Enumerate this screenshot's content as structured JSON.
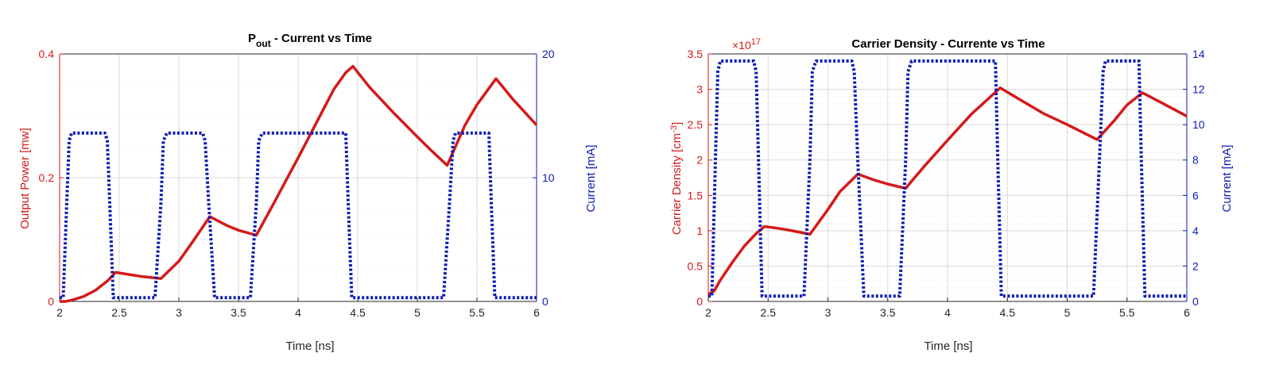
{
  "colors": {
    "power": "#d41a1a",
    "current": "#0d1bb5",
    "axis": "#262626",
    "grid_major": "#d9d9d9",
    "grid_minor": "#efefef"
  },
  "chart_data": [
    {
      "type": "line",
      "title": "P",
      "title_sub": "out",
      "title_rest": " - Current vs Time",
      "xlabel": "Time [ns]",
      "ylabel_left": "Output Power [mw]",
      "ylabel_right": "Current [mA]",
      "xlim": [
        2,
        6
      ],
      "ylim_left": [
        0,
        0.4
      ],
      "ylim_right": [
        0,
        20
      ],
      "xticks": [
        "2",
        "2.5",
        "3",
        "3.5",
        "4",
        "4.5",
        "5",
        "5.5",
        "6"
      ],
      "yticks_left": [
        "0",
        "0.2",
        "0.4"
      ],
      "yticks_right": [
        "0",
        "10",
        "20"
      ],
      "grid": true,
      "series": [
        {
          "axis": "left",
          "style": "solid",
          "x": [
            2.0,
            2.05,
            2.1,
            2.2,
            2.3,
            2.4,
            2.47,
            2.6,
            2.7,
            2.85,
            3.0,
            3.1,
            3.26,
            3.4,
            3.5,
            3.65,
            3.8,
            3.9,
            4.0,
            4.1,
            4.2,
            4.3,
            4.4,
            4.46,
            4.6,
            4.8,
            5.0,
            5.1,
            5.25,
            5.4,
            5.5,
            5.66,
            5.8,
            6.0
          ],
          "values": [
            0.0,
            0.0,
            0.002,
            0.008,
            0.018,
            0.033,
            0.047,
            0.043,
            0.04,
            0.037,
            0.065,
            0.092,
            0.137,
            0.123,
            0.115,
            0.107,
            0.16,
            0.196,
            0.232,
            0.269,
            0.306,
            0.343,
            0.37,
            0.38,
            0.346,
            0.305,
            0.266,
            0.247,
            0.22,
            0.285,
            0.318,
            0.36,
            0.327,
            0.285
          ]
        },
        {
          "axis": "right",
          "style": "dotted",
          "x": [
            2.0,
            2.03,
            2.06,
            2.08,
            2.1,
            2.38,
            2.4,
            2.42,
            2.45,
            2.5,
            2.8,
            2.85,
            2.87,
            2.9,
            2.92,
            3.2,
            3.22,
            3.25,
            3.3,
            3.6,
            3.65,
            3.67,
            3.7,
            3.72,
            4.4,
            4.42,
            4.45,
            4.5,
            5.22,
            5.27,
            5.3,
            5.32,
            5.6,
            5.62,
            5.65,
            5.7,
            6.0
          ],
          "values": [
            0.3,
            0.3,
            8,
            13,
            13.6,
            13.6,
            13,
            8,
            0.3,
            0.3,
            0.3,
            8,
            13,
            13.6,
            13.6,
            13.6,
            13,
            8,
            0.3,
            0.3,
            8,
            13,
            13.6,
            13.6,
            13.6,
            8,
            0.3,
            0.3,
            0.3,
            8,
            13,
            13.6,
            13.6,
            8,
            0.3,
            0.3,
            0.3
          ]
        }
      ]
    },
    {
      "type": "line",
      "title": "Carrier Density - Currente vs Time",
      "xlabel": "Time [ns]",
      "ylabel_left": "Carrier Density [cm",
      "ylabel_left_sup": "-3",
      "ylabel_left_end": "]",
      "ylabel_right": "Current [mA]",
      "exponent_base": "×10",
      "exponent_power": "17",
      "xlim": [
        2,
        6
      ],
      "ylim_left": [
        0,
        3.5
      ],
      "ylim_right": [
        0,
        14
      ],
      "xticks": [
        "2",
        "2.5",
        "3",
        "3.5",
        "4",
        "4.5",
        "5",
        "5.5",
        "6"
      ],
      "yticks_left": [
        "0",
        "0.5",
        "1",
        "1.5",
        "2",
        "2.5",
        "3",
        "3.5"
      ],
      "yticks_right": [
        "0",
        "2",
        "4",
        "6",
        "8",
        "10",
        "12",
        "14"
      ],
      "grid": true,
      "series": [
        {
          "axis": "left",
          "style": "solid",
          "x": [
            2.0,
            2.05,
            2.1,
            2.2,
            2.3,
            2.4,
            2.47,
            2.6,
            2.7,
            2.85,
            3.0,
            3.1,
            3.25,
            3.4,
            3.5,
            3.65,
            3.8,
            4.0,
            4.2,
            4.44,
            4.6,
            4.8,
            5.0,
            5.25,
            5.4,
            5.5,
            5.63,
            5.8,
            6.0
          ],
          "values": [
            0.1,
            0.15,
            0.3,
            0.55,
            0.78,
            0.96,
            1.06,
            1.03,
            1.0,
            0.95,
            1.3,
            1.55,
            1.8,
            1.71,
            1.66,
            1.6,
            1.9,
            2.28,
            2.65,
            3.02,
            2.86,
            2.66,
            2.5,
            2.29,
            2.57,
            2.78,
            2.95,
            2.8,
            2.62
          ]
        },
        {
          "axis": "right",
          "style": "dotted",
          "x": [
            2.0,
            2.03,
            2.06,
            2.08,
            2.1,
            2.38,
            2.4,
            2.42,
            2.45,
            2.5,
            2.8,
            2.85,
            2.87,
            2.9,
            2.92,
            3.2,
            3.22,
            3.25,
            3.3,
            3.6,
            3.65,
            3.67,
            3.7,
            3.72,
            4.4,
            4.42,
            4.45,
            4.5,
            5.22,
            5.27,
            5.3,
            5.32,
            5.6,
            5.62,
            5.65,
            5.7,
            6.0
          ],
          "values": [
            0.3,
            0.3,
            8,
            13,
            13.6,
            13.6,
            13,
            8,
            0.3,
            0.3,
            0.3,
            8,
            13,
            13.6,
            13.6,
            13.6,
            13,
            8,
            0.3,
            0.3,
            8,
            13,
            13.6,
            13.6,
            13.6,
            8,
            0.3,
            0.3,
            0.3,
            8,
            13,
            13.6,
            13.6,
            8,
            0.3,
            0.3,
            0.3
          ]
        }
      ]
    }
  ]
}
